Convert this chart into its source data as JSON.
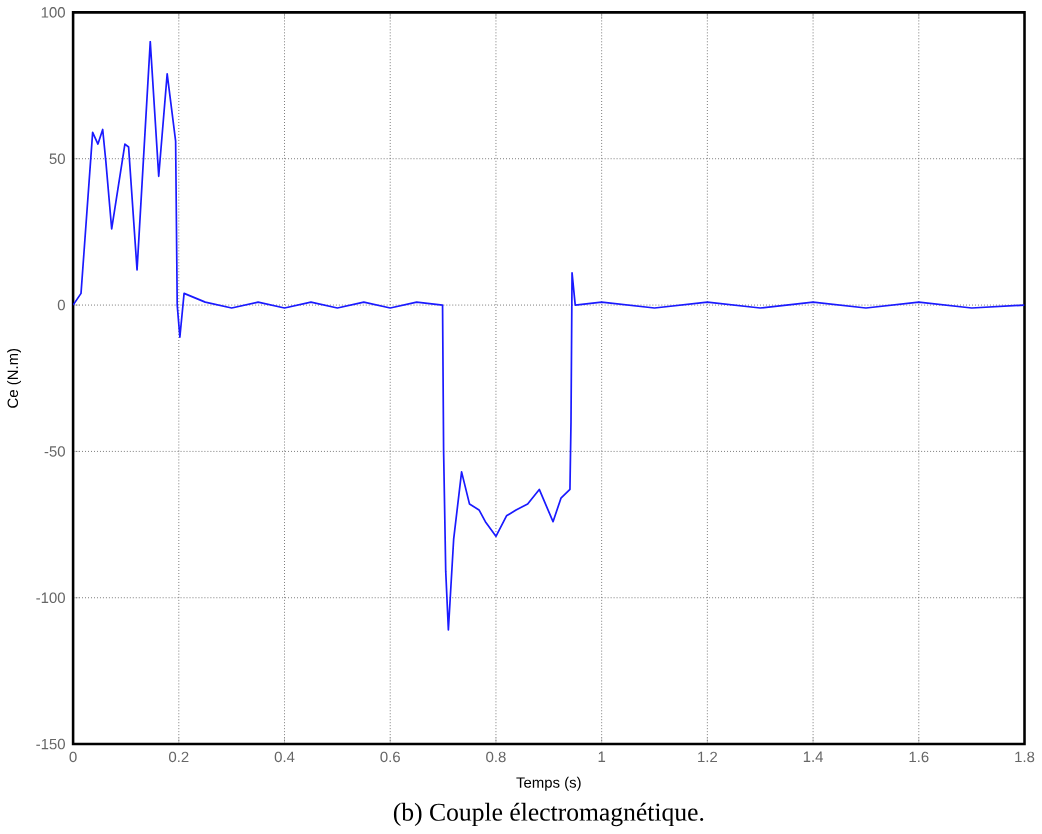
{
  "chart_data": {
    "type": "line",
    "title": "(b) Couple électromagnétique.",
    "xlabel": "Temps (s)",
    "ylabel": "Ce (N.m)",
    "xlim": [
      0,
      1.8
    ],
    "ylim": [
      -150,
      100
    ],
    "xticks": [
      0,
      0.2,
      0.4,
      0.6,
      0.8,
      1,
      1.2,
      1.4,
      1.6,
      1.8
    ],
    "yticks": [
      -150,
      -100,
      -50,
      0,
      50,
      100
    ],
    "grid": true,
    "marker": "none",
    "line_style": "solid",
    "series": [
      {
        "color": "#1a1aff",
        "x": [
          0,
          0.015,
          0.037,
          0.047,
          0.056,
          0.062,
          0.073,
          0.098,
          0.105,
          0.121,
          0.146,
          0.162,
          0.178,
          0.194,
          0.197,
          0.202,
          0.21,
          0.25,
          0.3,
          0.35,
          0.4,
          0.45,
          0.5,
          0.55,
          0.6,
          0.65,
          0.699,
          0.701,
          0.705,
          0.71,
          0.72,
          0.735,
          0.75,
          0.768,
          0.78,
          0.8,
          0.82,
          0.838,
          0.86,
          0.882,
          0.908,
          0.923,
          0.94,
          0.942,
          0.944,
          0.95,
          1.0,
          1.1,
          1.2,
          1.3,
          1.4,
          1.5,
          1.6,
          1.7,
          1.8
        ],
        "values": [
          0,
          4,
          59,
          55,
          60,
          49,
          26,
          55,
          54,
          12,
          90,
          44,
          79,
          56,
          0,
          -11,
          4,
          1,
          -1,
          1,
          -1,
          1,
          -1,
          1,
          -1,
          1,
          0,
          -50,
          -91,
          -111,
          -80,
          -57,
          -68,
          -70,
          -74,
          -79,
          -72,
          -70,
          -68,
          -63,
          -74,
          -66,
          -63,
          -40,
          11,
          0,
          1,
          -1,
          1,
          -1,
          1,
          -1,
          1,
          -1,
          0
        ]
      }
    ]
  }
}
